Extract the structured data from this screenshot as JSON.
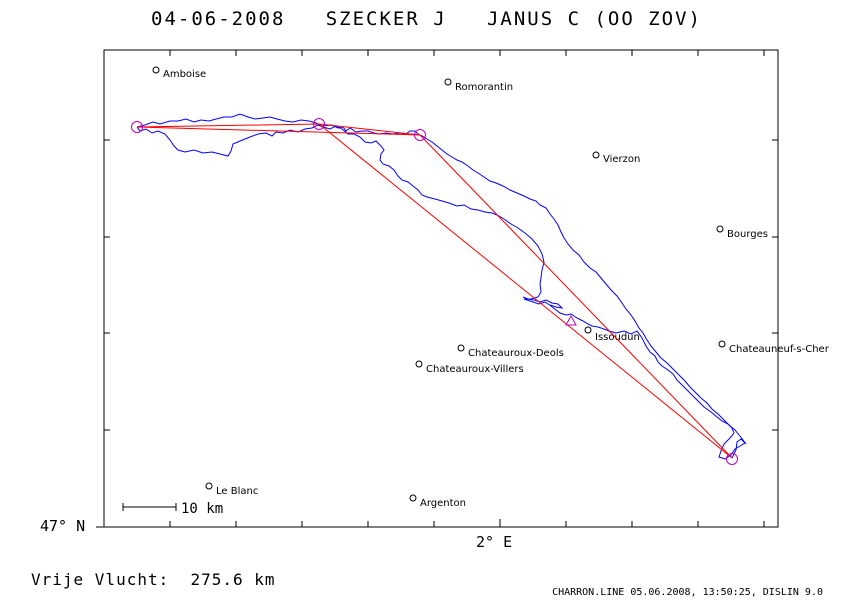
{
  "title": "04-06-2008   SZECKER J   JANUS C (OO ZOV)",
  "axis": {
    "latitude_label": "47° N",
    "longitude_label": "2° E"
  },
  "scale_bar": {
    "label": "10 km"
  },
  "towns": [
    {
      "name": "Amboise"
    },
    {
      "name": "Romorantin"
    },
    {
      "name": "Vierzon"
    },
    {
      "name": "Bourges"
    },
    {
      "name": "Issoudun"
    },
    {
      "name": "Chateauroux-Deols"
    },
    {
      "name": "Chateauroux-Villers"
    },
    {
      "name": "Chateauneuf-s-Cher"
    },
    {
      "name": "Le Blanc"
    },
    {
      "name": "Argenton"
    }
  ],
  "distance_text": "Vrije Vlucht:  275.6 km",
  "footer_text": "CHARRON.LINE 05.06.2008, 13:50:25, DISLIN 9.0",
  "colors": {
    "track": "#0000ff",
    "task_line": "#ff0000",
    "turnpoint": "#c000c0",
    "frame": "#000000"
  }
}
